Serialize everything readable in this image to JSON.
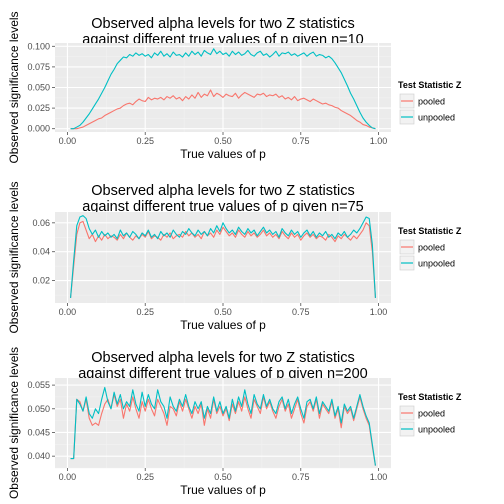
{
  "colors": {
    "pooled": "#F8766D",
    "unpooled": "#00BFC4",
    "panel_bg": "#EBEBEB",
    "grid_major": "#FFFFFF",
    "grid_minor": "#F2F2F2"
  },
  "chart_data": [
    {
      "type": "line",
      "title": [
        "Observed alpha levels for two Z statistics",
        "against different true values of p given n=10"
      ],
      "xlabel": "True values of p",
      "ylabel": "Observed significance levels",
      "xlim": [
        -0.04,
        1.04
      ],
      "ylim": [
        -0.004,
        0.104
      ],
      "xticks": [
        "0.00",
        "0.25",
        "0.50",
        "0.75",
        "1.00"
      ],
      "yticks": [
        "0.000",
        "0.025",
        "0.050",
        "0.075",
        "0.100"
      ],
      "legend": {
        "title": "Test Statistic Z",
        "entries": [
          "pooled",
          "unpooled"
        ],
        "position": "right"
      },
      "x": [
        0.01,
        0.02,
        0.03,
        0.04,
        0.05,
        0.06,
        0.07,
        0.08,
        0.09,
        0.1,
        0.11,
        0.12,
        0.13,
        0.14,
        0.15,
        0.16,
        0.17,
        0.18,
        0.19,
        0.2,
        0.21,
        0.22,
        0.23,
        0.24,
        0.25,
        0.26,
        0.27,
        0.28,
        0.29,
        0.3,
        0.31,
        0.32,
        0.33,
        0.34,
        0.35,
        0.36,
        0.37,
        0.38,
        0.39,
        0.4,
        0.41,
        0.42,
        0.43,
        0.44,
        0.45,
        0.46,
        0.47,
        0.48,
        0.49,
        0.5,
        0.51,
        0.52,
        0.53,
        0.54,
        0.55,
        0.56,
        0.57,
        0.58,
        0.59,
        0.6,
        0.61,
        0.62,
        0.63,
        0.64,
        0.65,
        0.66,
        0.67,
        0.68,
        0.69,
        0.7,
        0.71,
        0.72,
        0.73,
        0.74,
        0.75,
        0.76,
        0.77,
        0.78,
        0.79,
        0.8,
        0.81,
        0.82,
        0.83,
        0.84,
        0.85,
        0.86,
        0.87,
        0.88,
        0.89,
        0.9,
        0.91,
        0.92,
        0.93,
        0.94,
        0.95,
        0.96,
        0.97,
        0.98,
        0.99
      ],
      "series": [
        {
          "name": "pooled",
          "values": [
            0.0,
            0.0,
            0.0,
            0.001,
            0.002,
            0.004,
            0.006,
            0.008,
            0.01,
            0.012,
            0.013,
            0.016,
            0.018,
            0.02,
            0.022,
            0.024,
            0.025,
            0.028,
            0.03,
            0.031,
            0.029,
            0.033,
            0.036,
            0.034,
            0.033,
            0.038,
            0.035,
            0.037,
            0.036,
            0.038,
            0.035,
            0.039,
            0.037,
            0.04,
            0.036,
            0.038,
            0.034,
            0.039,
            0.036,
            0.041,
            0.037,
            0.044,
            0.038,
            0.042,
            0.04,
            0.047,
            0.039,
            0.043,
            0.041,
            0.038,
            0.042,
            0.04,
            0.039,
            0.043,
            0.037,
            0.041,
            0.044,
            0.042,
            0.04,
            0.038,
            0.042,
            0.041,
            0.043,
            0.039,
            0.041,
            0.04,
            0.042,
            0.038,
            0.04,
            0.036,
            0.038,
            0.035,
            0.039,
            0.034,
            0.036,
            0.037,
            0.035,
            0.033,
            0.036,
            0.034,
            0.032,
            0.03,
            0.031,
            0.029,
            0.028,
            0.026,
            0.025,
            0.022,
            0.02,
            0.018,
            0.016,
            0.013,
            0.01,
            0.008,
            0.005,
            0.004,
            0.002,
            0.001,
            0.0
          ]
        },
        {
          "name": "unpooled",
          "values": [
            0.0,
            0.0,
            0.002,
            0.004,
            0.008,
            0.013,
            0.018,
            0.024,
            0.03,
            0.036,
            0.043,
            0.05,
            0.058,
            0.066,
            0.072,
            0.079,
            0.083,
            0.087,
            0.086,
            0.09,
            0.088,
            0.092,
            0.089,
            0.091,
            0.088,
            0.09,
            0.086,
            0.092,
            0.089,
            0.094,
            0.088,
            0.091,
            0.087,
            0.093,
            0.089,
            0.09,
            0.087,
            0.092,
            0.088,
            0.094,
            0.09,
            0.093,
            0.088,
            0.095,
            0.092,
            0.09,
            0.097,
            0.091,
            0.094,
            0.09,
            0.092,
            0.088,
            0.094,
            0.09,
            0.093,
            0.089,
            0.091,
            0.095,
            0.09,
            0.088,
            0.092,
            0.094,
            0.089,
            0.091,
            0.087,
            0.09,
            0.094,
            0.088,
            0.092,
            0.091,
            0.093,
            0.089,
            0.091,
            0.088,
            0.09,
            0.092,
            0.088,
            0.091,
            0.093,
            0.088,
            0.09,
            0.089,
            0.086,
            0.088,
            0.085,
            0.08,
            0.074,
            0.068,
            0.06,
            0.052,
            0.043,
            0.036,
            0.028,
            0.02,
            0.013,
            0.008,
            0.004,
            0.001,
            0.0
          ]
        }
      ]
    },
    {
      "type": "line",
      "title": [
        "Observed alpha levels for two Z statistics",
        "against different true values of p given n=75"
      ],
      "xlabel": "True values of p",
      "ylabel": "Observed significance levels",
      "xlim": [
        -0.04,
        1.04
      ],
      "ylim": [
        0.0045,
        0.0675
      ],
      "xticks": [
        "0.00",
        "0.25",
        "0.50",
        "0.75",
        "1.00"
      ],
      "yticks": [
        "0.02",
        "0.04",
        "0.06"
      ],
      "legend": {
        "title": "Test Statistic Z",
        "entries": [
          "pooled",
          "unpooled"
        ],
        "position": "right"
      },
      "x": [
        0.01,
        0.02,
        0.03,
        0.04,
        0.05,
        0.06,
        0.07,
        0.08,
        0.09,
        0.1,
        0.11,
        0.12,
        0.13,
        0.14,
        0.15,
        0.16,
        0.17,
        0.18,
        0.19,
        0.2,
        0.21,
        0.22,
        0.23,
        0.24,
        0.25,
        0.26,
        0.27,
        0.28,
        0.29,
        0.3,
        0.31,
        0.32,
        0.33,
        0.34,
        0.35,
        0.36,
        0.37,
        0.38,
        0.39,
        0.4,
        0.41,
        0.42,
        0.43,
        0.44,
        0.45,
        0.46,
        0.47,
        0.48,
        0.49,
        0.5,
        0.51,
        0.52,
        0.53,
        0.54,
        0.55,
        0.56,
        0.57,
        0.58,
        0.59,
        0.6,
        0.61,
        0.62,
        0.63,
        0.64,
        0.65,
        0.66,
        0.67,
        0.68,
        0.69,
        0.7,
        0.71,
        0.72,
        0.73,
        0.74,
        0.75,
        0.76,
        0.77,
        0.78,
        0.79,
        0.8,
        0.81,
        0.82,
        0.83,
        0.84,
        0.85,
        0.86,
        0.87,
        0.88,
        0.89,
        0.9,
        0.91,
        0.92,
        0.93,
        0.94,
        0.95,
        0.96,
        0.97,
        0.98,
        0.99
      ],
      "series": [
        {
          "name": "pooled",
          "values": [
            0.008,
            0.03,
            0.052,
            0.06,
            0.061,
            0.055,
            0.049,
            0.052,
            0.047,
            0.051,
            0.048,
            0.052,
            0.049,
            0.051,
            0.05,
            0.048,
            0.052,
            0.049,
            0.053,
            0.05,
            0.048,
            0.051,
            0.049,
            0.052,
            0.05,
            0.054,
            0.049,
            0.051,
            0.05,
            0.048,
            0.052,
            0.05,
            0.053,
            0.049,
            0.051,
            0.052,
            0.05,
            0.054,
            0.051,
            0.053,
            0.05,
            0.052,
            0.049,
            0.054,
            0.051,
            0.053,
            0.05,
            0.055,
            0.052,
            0.057,
            0.054,
            0.051,
            0.053,
            0.05,
            0.055,
            0.052,
            0.05,
            0.054,
            0.051,
            0.053,
            0.05,
            0.052,
            0.055,
            0.051,
            0.053,
            0.05,
            0.052,
            0.049,
            0.054,
            0.051,
            0.049,
            0.053,
            0.05,
            0.052,
            0.048,
            0.051,
            0.053,
            0.05,
            0.052,
            0.049,
            0.051,
            0.05,
            0.048,
            0.052,
            0.05,
            0.047,
            0.051,
            0.049,
            0.052,
            0.05,
            0.048,
            0.051,
            0.049,
            0.052,
            0.055,
            0.06,
            0.058,
            0.04,
            0.008
          ]
        },
        {
          "name": "unpooled",
          "values": [
            0.008,
            0.034,
            0.058,
            0.064,
            0.065,
            0.063,
            0.056,
            0.052,
            0.055,
            0.05,
            0.054,
            0.051,
            0.053,
            0.05,
            0.052,
            0.049,
            0.055,
            0.051,
            0.053,
            0.05,
            0.054,
            0.052,
            0.049,
            0.053,
            0.051,
            0.055,
            0.05,
            0.052,
            0.049,
            0.054,
            0.051,
            0.053,
            0.05,
            0.055,
            0.052,
            0.05,
            0.054,
            0.052,
            0.056,
            0.053,
            0.051,
            0.055,
            0.052,
            0.054,
            0.051,
            0.056,
            0.053,
            0.058,
            0.054,
            0.06,
            0.056,
            0.053,
            0.055,
            0.052,
            0.057,
            0.054,
            0.052,
            0.056,
            0.053,
            0.055,
            0.051,
            0.054,
            0.057,
            0.053,
            0.055,
            0.052,
            0.054,
            0.05,
            0.056,
            0.053,
            0.051,
            0.055,
            0.052,
            0.054,
            0.05,
            0.053,
            0.055,
            0.051,
            0.054,
            0.05,
            0.053,
            0.051,
            0.054,
            0.05,
            0.052,
            0.049,
            0.053,
            0.051,
            0.054,
            0.05,
            0.052,
            0.055,
            0.053,
            0.056,
            0.06,
            0.064,
            0.063,
            0.045,
            0.008
          ]
        }
      ]
    },
    {
      "type": "line",
      "title": [
        "Observed alpha levels for two Z statistics",
        "against different true values of p given n=200"
      ],
      "xlabel": "True values of p",
      "ylabel": "Observed significance levels",
      "xlim": [
        -0.04,
        1.04
      ],
      "ylim": [
        0.0375,
        0.0565
      ],
      "xticks": [
        "0.00",
        "0.25",
        "0.50",
        "0.75",
        "1.00"
      ],
      "yticks": [
        "0.040",
        "0.045",
        "0.050",
        "0.055"
      ],
      "legend": {
        "title": "Test Statistic Z",
        "entries": [
          "pooled",
          "unpooled"
        ],
        "position": "right"
      },
      "x": [
        0.01,
        0.02,
        0.03,
        0.04,
        0.05,
        0.06,
        0.07,
        0.08,
        0.09,
        0.1,
        0.11,
        0.12,
        0.13,
        0.14,
        0.15,
        0.16,
        0.17,
        0.18,
        0.19,
        0.2,
        0.21,
        0.22,
        0.23,
        0.24,
        0.25,
        0.26,
        0.27,
        0.28,
        0.29,
        0.3,
        0.31,
        0.32,
        0.33,
        0.34,
        0.35,
        0.36,
        0.37,
        0.38,
        0.39,
        0.4,
        0.41,
        0.42,
        0.43,
        0.44,
        0.45,
        0.46,
        0.47,
        0.48,
        0.49,
        0.5,
        0.51,
        0.52,
        0.53,
        0.54,
        0.55,
        0.56,
        0.57,
        0.58,
        0.59,
        0.6,
        0.61,
        0.62,
        0.63,
        0.64,
        0.65,
        0.66,
        0.67,
        0.68,
        0.69,
        0.7,
        0.71,
        0.72,
        0.73,
        0.74,
        0.75,
        0.76,
        0.77,
        0.78,
        0.79,
        0.8,
        0.81,
        0.82,
        0.83,
        0.84,
        0.85,
        0.86,
        0.87,
        0.88,
        0.89,
        0.9,
        0.91,
        0.92,
        0.93,
        0.94,
        0.95,
        0.96,
        0.97,
        0.98,
        0.99
      ],
      "series": [
        {
          "name": "pooled",
          "values": [
            0.0395,
            0.0395,
            0.052,
            0.0515,
            0.0495,
            0.052,
            0.048,
            0.0465,
            0.047,
            0.0465,
            0.049,
            0.051,
            0.052,
            0.05,
            0.053,
            0.0505,
            0.052,
            0.048,
            0.051,
            0.0495,
            0.0525,
            0.05,
            0.048,
            0.0515,
            0.0495,
            0.052,
            0.05,
            0.0485,
            0.052,
            0.0505,
            0.049,
            0.0465,
            0.0505,
            0.05,
            0.0485,
            0.0515,
            0.0495,
            0.052,
            0.05,
            0.048,
            0.0505,
            0.049,
            0.051,
            0.0465,
            0.05,
            0.048,
            0.052,
            0.049,
            0.0505,
            0.0485,
            0.05,
            0.0475,
            0.051,
            0.049,
            0.0515,
            0.0495,
            0.0525,
            0.05,
            0.048,
            0.052,
            0.0505,
            0.049,
            0.0525,
            0.05,
            0.0515,
            0.0495,
            0.048,
            0.0505,
            0.052,
            0.0495,
            0.051,
            0.048,
            0.05,
            0.052,
            0.049,
            0.047,
            0.0505,
            0.0515,
            0.0495,
            0.052,
            0.048,
            0.051,
            0.05,
            0.049,
            0.0515,
            0.048,
            0.05,
            0.046,
            0.0505,
            0.049,
            0.05,
            0.0475,
            0.05,
            0.0525,
            0.05,
            0.048,
            0.0465,
            0.042,
            0.038
          ]
        },
        {
          "name": "unpooled",
          "values": [
            0.0395,
            0.0395,
            0.052,
            0.051,
            0.0495,
            0.0525,
            0.049,
            0.048,
            0.05,
            0.049,
            0.052,
            0.0545,
            0.0515,
            0.05,
            0.0535,
            0.051,
            0.053,
            0.05,
            0.0515,
            0.0505,
            0.054,
            0.051,
            0.0495,
            0.0535,
            0.0505,
            0.053,
            0.051,
            0.05,
            0.054,
            0.0515,
            0.0505,
            0.048,
            0.0525,
            0.0505,
            0.0495,
            0.052,
            0.0505,
            0.053,
            0.0505,
            0.049,
            0.0515,
            0.05,
            0.0515,
            0.048,
            0.0505,
            0.049,
            0.0525,
            0.0495,
            0.0515,
            0.049,
            0.0505,
            0.048,
            0.052,
            0.0495,
            0.0525,
            0.0505,
            0.054,
            0.051,
            0.049,
            0.053,
            0.051,
            0.05,
            0.053,
            0.0505,
            0.052,
            0.05,
            0.049,
            0.0515,
            0.0525,
            0.05,
            0.052,
            0.049,
            0.051,
            0.0525,
            0.05,
            0.048,
            0.0515,
            0.052,
            0.05,
            0.0525,
            0.049,
            0.0515,
            0.0505,
            0.0495,
            0.052,
            0.0485,
            0.0505,
            0.047,
            0.051,
            0.0495,
            0.0505,
            0.048,
            0.0505,
            0.053,
            0.0505,
            0.0485,
            0.047,
            0.0425,
            0.038
          ]
        }
      ]
    }
  ]
}
